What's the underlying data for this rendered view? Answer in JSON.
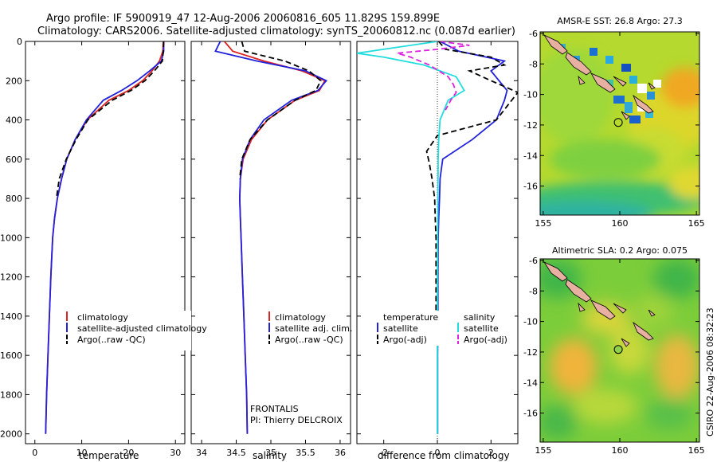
{
  "header": {
    "line1": "Argo profile: IF 5900919_47 12-Aug-2006 20060816_605 11.829S 159.899E",
    "line2": "Climatology: CARS2006. Satellite-adjusted climatology: synTS_20060812.nc (0.087d earlier)"
  },
  "side_text": "CSIRO 22-Aug-2006 08:32:23",
  "colors": {
    "climatology": "#dd2222",
    "satellite": "#2222dd",
    "argo": "#000000",
    "sal_satellite": "#22dddd",
    "sal_argo": "#dd22dd"
  },
  "chart_data": [
    {
      "type": "line",
      "xlabel": "temperature",
      "xlim": [
        -2,
        32
      ],
      "ylim": [
        2050,
        0
      ],
      "xticks": [
        0,
        10,
        20,
        30
      ],
      "yticks": [
        0,
        200,
        400,
        600,
        800,
        1000,
        1200,
        1400,
        1600,
        1800,
        2000
      ],
      "legend": {
        "entries": [
          {
            "label": "climatology",
            "color": "#dd2222"
          },
          {
            "label": "satellite-adjusted climatology",
            "color": "#2222dd"
          },
          {
            "label": "Argo(..raw -QC)",
            "color": "#000000"
          }
        ]
      },
      "series": [
        {
          "key": "climatology",
          "dash": false,
          "x": [
            27.4,
            27.3,
            26.6,
            25.0,
            23.0,
            20.0,
            15.8,
            11.2,
            8.6,
            6.8,
            5.7,
            4.8,
            4.2,
            3.8,
            3.4,
            3.1,
            2.8,
            2.5,
            2.3
          ],
          "y": [
            0,
            50,
            100,
            150,
            200,
            250,
            300,
            400,
            500,
            600,
            700,
            800,
            900,
            1000,
            1200,
            1400,
            1600,
            1800,
            2000
          ]
        },
        {
          "key": "satellite",
          "dash": false,
          "x": [
            27.5,
            27.5,
            27.0,
            24.5,
            21.8,
            18.5,
            14.6,
            11.0,
            8.6,
            6.8,
            5.7,
            4.8,
            4.2,
            3.8,
            3.4,
            3.1,
            2.8,
            2.5,
            2.3
          ],
          "y": [
            0,
            50,
            100,
            150,
            200,
            250,
            300,
            400,
            500,
            600,
            700,
            800,
            900,
            1000,
            1200,
            1400,
            1600,
            1800,
            2000
          ]
        },
        {
          "key": "argo",
          "dash": true,
          "x": [
            27.5,
            27.4,
            27.2,
            25.5,
            23.5,
            20.5,
            16.5,
            11.3,
            8.8,
            6.7,
            5.2,
            4.6
          ],
          "y": [
            0,
            50,
            100,
            150,
            200,
            250,
            300,
            400,
            500,
            600,
            700,
            800
          ]
        }
      ]
    },
    {
      "type": "line",
      "xlabel": "salinity",
      "xlim": [
        33.85,
        36.15
      ],
      "ylim": [
        2050,
        0
      ],
      "xticks": [
        34,
        34.5,
        35,
        35.5,
        36
      ],
      "legend": {
        "entries": [
          {
            "label": "climatology",
            "color": "#dd2222"
          },
          {
            "label": "satellite adj. clim.",
            "color": "#2222dd"
          },
          {
            "label": "Argo(..raw -QC)",
            "color": "#000000"
          }
        ]
      },
      "annotation": {
        "line1": "FRONTALIS",
        "line2": "PI: Thierry DELCROIX"
      },
      "series": [
        {
          "key": "climatology",
          "dash": false,
          "x": [
            34.33,
            34.45,
            34.9,
            35.45,
            35.78,
            35.7,
            35.35,
            34.95,
            34.72,
            34.6,
            34.56,
            34.55,
            34.56,
            34.57,
            34.59,
            34.61,
            34.63,
            34.65,
            34.66
          ],
          "y": [
            0,
            50,
            100,
            150,
            200,
            250,
            300,
            400,
            500,
            600,
            700,
            800,
            900,
            1000,
            1200,
            1400,
            1600,
            1800,
            2000
          ]
        },
        {
          "key": "satellite",
          "dash": false,
          "x": [
            34.27,
            34.2,
            34.8,
            35.5,
            35.8,
            35.68,
            35.3,
            34.9,
            34.7,
            34.59,
            34.56,
            34.55,
            34.56,
            34.57,
            34.59,
            34.61,
            34.63,
            34.65,
            34.66
          ],
          "y": [
            0,
            50,
            100,
            150,
            200,
            250,
            300,
            400,
            500,
            600,
            700,
            800,
            900,
            1000,
            1200,
            1400,
            1600,
            1800,
            2000
          ]
        },
        {
          "key": "argo",
          "dash": true,
          "x": [
            34.58,
            34.62,
            35.2,
            35.55,
            35.72,
            35.65,
            35.35,
            34.95,
            34.7,
            34.58,
            34.55
          ],
          "y": [
            0,
            50,
            100,
            150,
            200,
            250,
            300,
            400,
            500,
            600,
            700
          ]
        }
      ]
    },
    {
      "type": "line",
      "xlabel": "difference from climatology",
      "xlim": [
        -3.0,
        3.0
      ],
      "ylim": [
        2050,
        0
      ],
      "xticks": [
        -2,
        0,
        2
      ],
      "legend": {
        "header_temperature": "temperature",
        "header_salinity": "salinity",
        "entries": [
          {
            "label": "satellite",
            "color": "#2222dd"
          },
          {
            "label": "Argo(-adj)",
            "color": "#000000"
          },
          {
            "label": "satellite",
            "color": "#22dddd"
          },
          {
            "label": "Argo(-adj)",
            "color": "#dd22dd"
          }
        ]
      },
      "series": [
        {
          "key": "satellite",
          "dash": false,
          "x": [
            0.1,
            0.8,
            2.5,
            2.0,
            2.3,
            2.6,
            2.5,
            2.2,
            1.3,
            0.2,
            0.1,
            0.08,
            0.05,
            0.03,
            0.02,
            0.02,
            0.01,
            0.01,
            0.01
          ],
          "y": [
            0,
            50,
            100,
            150,
            200,
            250,
            300,
            400,
            500,
            600,
            700,
            800,
            900,
            1000,
            1200,
            1400,
            1600,
            1800,
            2000
          ]
        },
        {
          "key": "argo",
          "dash": true,
          "x": [
            0.05,
            0.3,
            2.0,
            2.5,
            1.2,
            2.0,
            3.0,
            2.2,
            0.0,
            -0.4,
            -0.3,
            -0.2,
            -0.1,
            -0.08,
            -0.05,
            -0.05,
            -0.05
          ],
          "y": [
            0,
            40,
            80,
            120,
            150,
            200,
            260,
            400,
            480,
            560,
            620,
            700,
            800,
            900,
            1000,
            1200,
            1400
          ]
        },
        {
          "key": "sal_satellite",
          "dash": false,
          "x": [
            0.0,
            -1.5,
            -3.0,
            -2.0,
            -0.5,
            0.7,
            1.0,
            0.4,
            0.1,
            0.05,
            0.03,
            0.02,
            0.01,
            0.0,
            0.0,
            0.0,
            0.0,
            0.0
          ],
          "y": [
            0,
            30,
            60,
            80,
            120,
            180,
            250,
            300,
            400,
            500,
            600,
            800,
            1000,
            1200,
            1400,
            1600,
            1800,
            2000
          ]
        },
        {
          "key": "sal_argo",
          "dash": true,
          "x": [
            0.1,
            1.2,
            0.0,
            -1.5,
            -1.0,
            -0.3,
            0.4,
            0.6,
            0.7,
            0.5,
            0.3
          ],
          "y": [
            0,
            20,
            40,
            60,
            80,
            120,
            180,
            220,
            260,
            300,
            350
          ]
        }
      ]
    }
  ],
  "maps": [
    {
      "title": "AMSR-E SST: 26.8 Argo: 27.3",
      "xticks": [
        155,
        160,
        165
      ],
      "yticks": [
        -6,
        -8,
        -10,
        -12,
        -14,
        -16
      ],
      "lon_range": [
        154.8,
        165.2
      ],
      "lat_range": [
        -17.9,
        -5.9
      ],
      "argo_position": {
        "lon": 159.9,
        "lat": -11.83
      }
    },
    {
      "title": "Altimetric SLA: 0.2 Argo: 0.075",
      "xticks": [
        155,
        160,
        165
      ],
      "yticks": [
        -6,
        -8,
        -10,
        -12,
        -14,
        -16
      ],
      "lon_range": [
        154.8,
        165.2
      ],
      "lat_range": [
        -17.9,
        -5.9
      ],
      "argo_position": {
        "lon": 159.9,
        "lat": -11.83
      }
    }
  ]
}
